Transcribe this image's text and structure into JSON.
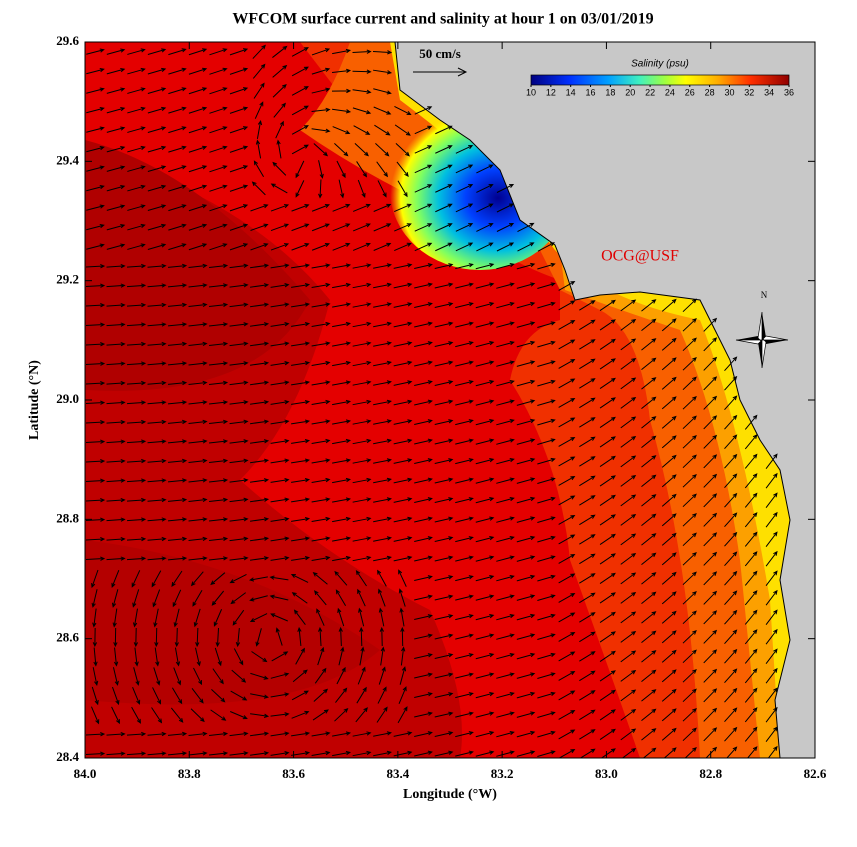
{
  "map": {
    "title": "WFCOM surface current and salinity at hour 1 on 03/01/2019",
    "x_label": "Longitude (°W)",
    "y_label": "Latitude (°N)",
    "xlim": [
      84.0,
      82.6
    ],
    "ylim": [
      28.4,
      29.6
    ],
    "xticks": [
      {
        "value": 84,
        "label": "84.0"
      },
      {
        "value": 83.8,
        "label": "83.8"
      },
      {
        "value": 83.6,
        "label": "83.6"
      },
      {
        "value": 83.4,
        "label": "83.4"
      },
      {
        "value": 83.2,
        "label": "83.2"
      },
      {
        "value": 83,
        "label": "83.0"
      },
      {
        "value": 82.8,
        "label": "82.8"
      },
      {
        "value": 82.6,
        "label": "82.6"
      }
    ],
    "yticks": [
      {
        "value": 28.4,
        "label": "28.4"
      },
      {
        "value": 28.6,
        "label": "28.6"
      },
      {
        "value": 28.8,
        "label": "28.8"
      },
      {
        "value": 29,
        "label": "29.0"
      },
      {
        "value": 29.2,
        "label": "29.2"
      },
      {
        "value": 29.4,
        "label": "29.4"
      },
      {
        "value": 29.6,
        "label": "29.6"
      }
    ],
    "scale_label": "50 cm/s",
    "credit": "OCG@USF",
    "north_label": "N",
    "colorbar": {
      "title": "Salinity (psu)",
      "lim": [
        10,
        36
      ],
      "ticks": [
        10,
        12,
        14,
        16,
        18,
        20,
        22,
        24,
        26,
        28,
        30,
        32,
        34,
        36
      ]
    }
  }
}
